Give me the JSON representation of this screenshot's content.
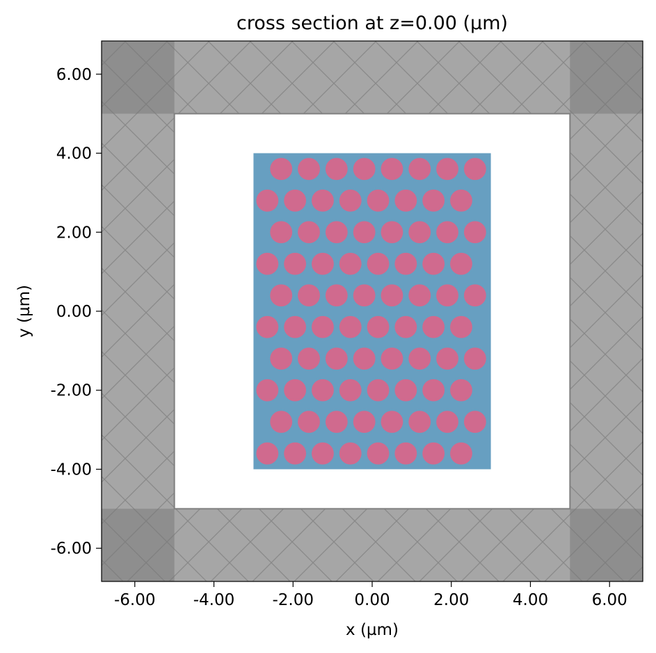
{
  "chart_data": {
    "type": "scatter",
    "title": "cross section at z=0.00 (µm)",
    "xlabel": "x (µm)",
    "ylabel": "y (µm)",
    "xlim": [
      -6.84,
      6.84
    ],
    "ylim": [
      -6.84,
      6.84
    ],
    "xticks": [
      -6,
      -4,
      -2,
      0,
      2,
      4,
      6
    ],
    "yticks": [
      -6,
      -4,
      -2,
      0,
      2,
      4,
      6
    ],
    "xtick_labels": [
      "-6.00",
      "-4.00",
      "-2.00",
      "0.00",
      "2.00",
      "4.00",
      "6.00"
    ],
    "ytick_labels": [
      "-6.00",
      "-4.00",
      "-2.00",
      "0.00",
      "2.00",
      "4.00",
      "6.00"
    ],
    "grid": false,
    "pml_inner_bound": 5.0,
    "slab": {
      "x": [
        -3.0,
        3.0
      ],
      "y": [
        -4.0,
        4.0
      ]
    },
    "hole_radius": 0.28,
    "hole_pitch_x": 0.7,
    "rows": [
      {
        "y": 3.6,
        "x_start": -2.3,
        "count": 8
      },
      {
        "y": 2.8,
        "x_start": -2.65,
        "count": 8
      },
      {
        "y": 2.0,
        "x_start": -2.3,
        "count": 8
      },
      {
        "y": 1.2,
        "x_start": -2.65,
        "count": 8
      },
      {
        "y": 0.4,
        "x_start": -2.3,
        "count": 8
      },
      {
        "y": -0.4,
        "x_start": -2.65,
        "count": 8
      },
      {
        "y": -1.2,
        "x_start": -2.3,
        "count": 8
      },
      {
        "y": -2.0,
        "x_start": -2.65,
        "count": 8
      },
      {
        "y": -2.8,
        "x_start": -2.3,
        "count": 8
      },
      {
        "y": -3.6,
        "x_start": -2.65,
        "count": 8
      }
    ],
    "colors": {
      "slab": "#679fc1",
      "holes": "#d06a8e",
      "pml": "#a6a6a6",
      "pml_corner": "#8e8e8e",
      "hatch": "#7f7f7f"
    }
  }
}
